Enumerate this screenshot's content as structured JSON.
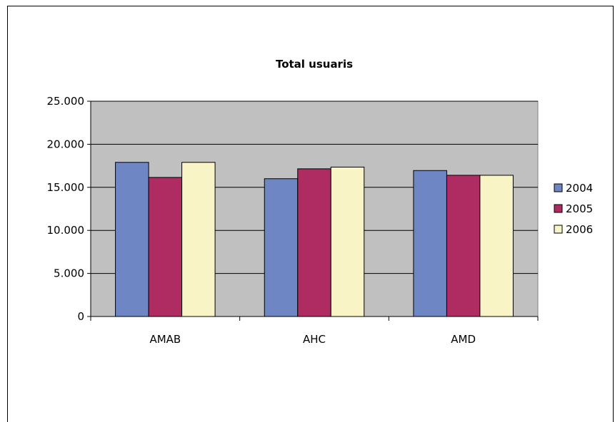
{
  "chart_data": {
    "type": "bar",
    "title": "Total usuaris",
    "xlabel": "",
    "ylabel": "",
    "categories": [
      "AMAB",
      "AHC",
      "AMD"
    ],
    "series": [
      {
        "name": "2004",
        "values": [
          17900,
          16000,
          16950
        ],
        "color": "#6f86c4"
      },
      {
        "name": "2005",
        "values": [
          16150,
          17150,
          16400
        ],
        "color": "#ae2c62"
      },
      {
        "name": "2006",
        "values": [
          17900,
          17350,
          16400
        ],
        "color": "#f8f4c6"
      }
    ],
    "ylim": [
      0,
      25000
    ],
    "yticks": [
      0,
      5000,
      10000,
      15000,
      20000,
      25000
    ],
    "ytick_labels": [
      "0",
      "5.000",
      "10.000",
      "15.000",
      "20.000",
      "25.000"
    ],
    "grid": true,
    "plot_background": "#c0c0c0",
    "legend_position": "right"
  }
}
